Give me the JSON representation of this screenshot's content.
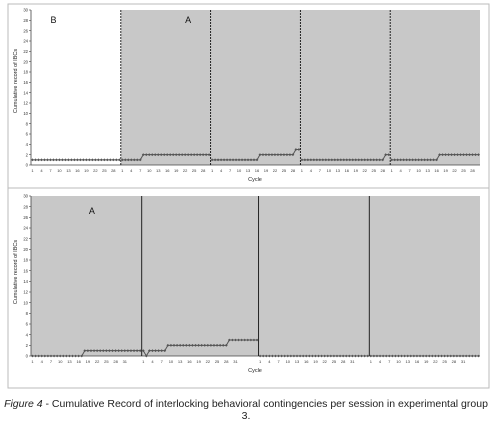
{
  "caption": {
    "label": "Figure 4",
    "text": " - Cumulative Record of interlocking behavioral contingencies per session in experimental group 3."
  },
  "colors": {
    "shaded": "#c8c8c8",
    "line": "#555555",
    "axis": "#444444",
    "divider": "#111111"
  },
  "chart_data": [
    {
      "type": "line",
      "title": "",
      "xlabel": "Cycle",
      "ylabel": "Cumulative record of IBCs",
      "ylim": [
        0,
        30
      ],
      "yticks": [
        0,
        2,
        4,
        6,
        8,
        10,
        12,
        14,
        16,
        18,
        20,
        22,
        24,
        26,
        28,
        30
      ],
      "grid": false,
      "x_tick_labels": [
        "1",
        "4",
        "7",
        "10",
        "13",
        "16",
        "19",
        "22",
        "25",
        "28"
      ],
      "cycles_per_session": 30,
      "phase_labels": [
        {
          "text": "B",
          "session": 1
        },
        {
          "text": "A",
          "session": 2
        }
      ],
      "sessions": [
        {
          "phase": "B",
          "shaded": false,
          "values": [
            1,
            1,
            1,
            1,
            1,
            1,
            1,
            1,
            1,
            1,
            1,
            1,
            1,
            1,
            1,
            1,
            1,
            1,
            1,
            1,
            1,
            1,
            1,
            1,
            1,
            1,
            1,
            1,
            1,
            1
          ]
        },
        {
          "phase": "A",
          "shaded": true,
          "values": [
            1,
            1,
            1,
            1,
            1,
            1,
            1,
            2,
            2,
            2,
            2,
            2,
            2,
            2,
            2,
            2,
            2,
            2,
            2,
            2,
            2,
            2,
            2,
            2,
            2,
            2,
            2,
            2,
            2,
            2
          ]
        },
        {
          "phase": "A",
          "shaded": true,
          "values": [
            1,
            1,
            1,
            1,
            1,
            1,
            1,
            1,
            1,
            1,
            1,
            1,
            1,
            1,
            1,
            1,
            2,
            2,
            2,
            2,
            2,
            2,
            2,
            2,
            2,
            2,
            2,
            2,
            3,
            3
          ]
        },
        {
          "phase": "A",
          "shaded": true,
          "values": [
            1,
            1,
            1,
            1,
            1,
            1,
            1,
            1,
            1,
            1,
            1,
            1,
            1,
            1,
            1,
            1,
            1,
            1,
            1,
            1,
            1,
            1,
            1,
            1,
            1,
            1,
            1,
            1,
            2,
            2
          ]
        },
        {
          "phase": "A",
          "shaded": true,
          "values": [
            1,
            1,
            1,
            1,
            1,
            1,
            1,
            1,
            1,
            1,
            1,
            1,
            1,
            1,
            1,
            1,
            2,
            2,
            2,
            2,
            2,
            2,
            2,
            2,
            2,
            2,
            2,
            2,
            2,
            2
          ]
        }
      ]
    },
    {
      "type": "line",
      "title": "",
      "xlabel": "Cycle",
      "ylabel": "Cumulative record of IBCs",
      "ylim": [
        0,
        30
      ],
      "yticks": [
        0,
        2,
        4,
        6,
        8,
        10,
        12,
        14,
        16,
        18,
        20,
        22,
        24,
        26,
        28,
        30
      ],
      "grid": false,
      "x_tick_labels": [
        "1",
        "4",
        "7",
        "10",
        "13",
        "16",
        "19",
        "22",
        "25",
        "28",
        "31"
      ],
      "phase_labels": [
        {
          "text": "A",
          "session": 1
        }
      ],
      "sessions": [
        {
          "phase": "A",
          "shaded": true,
          "values": [
            0,
            0,
            0,
            0,
            0,
            0,
            0,
            0,
            0,
            0,
            0,
            0,
            0,
            0,
            0,
            0,
            0,
            1,
            1,
            1,
            1,
            1,
            1,
            1,
            1,
            1,
            1,
            1,
            1,
            1,
            1,
            1,
            1,
            1,
            1,
            1
          ]
        },
        {
          "phase": "A",
          "shaded": true,
          "values": [
            1,
            0,
            1,
            1,
            1,
            1,
            1,
            1,
            2,
            2,
            2,
            2,
            2,
            2,
            2,
            2,
            2,
            2,
            2,
            2,
            2,
            2,
            2,
            2,
            2,
            2,
            2,
            2,
            3,
            3,
            3,
            3,
            3,
            3,
            3,
            3,
            3,
            3
          ]
        },
        {
          "phase": "A",
          "shaded": true,
          "values": [
            0,
            0,
            0,
            0,
            0,
            0,
            0,
            0,
            0,
            0,
            0,
            0,
            0,
            0,
            0,
            0,
            0,
            0,
            0,
            0,
            0,
            0,
            0,
            0,
            0,
            0,
            0,
            0,
            0,
            0,
            0,
            0,
            0,
            0,
            0,
            0
          ]
        },
        {
          "phase": "A",
          "shaded": true,
          "values": [
            0,
            0,
            0,
            0,
            0,
            0,
            0,
            0,
            0,
            0,
            0,
            0,
            0,
            0,
            0,
            0,
            0,
            0,
            0,
            0,
            0,
            0,
            0,
            0,
            0,
            0,
            0,
            0,
            0,
            0,
            0,
            0,
            0,
            0,
            0,
            0
          ]
        }
      ]
    }
  ]
}
